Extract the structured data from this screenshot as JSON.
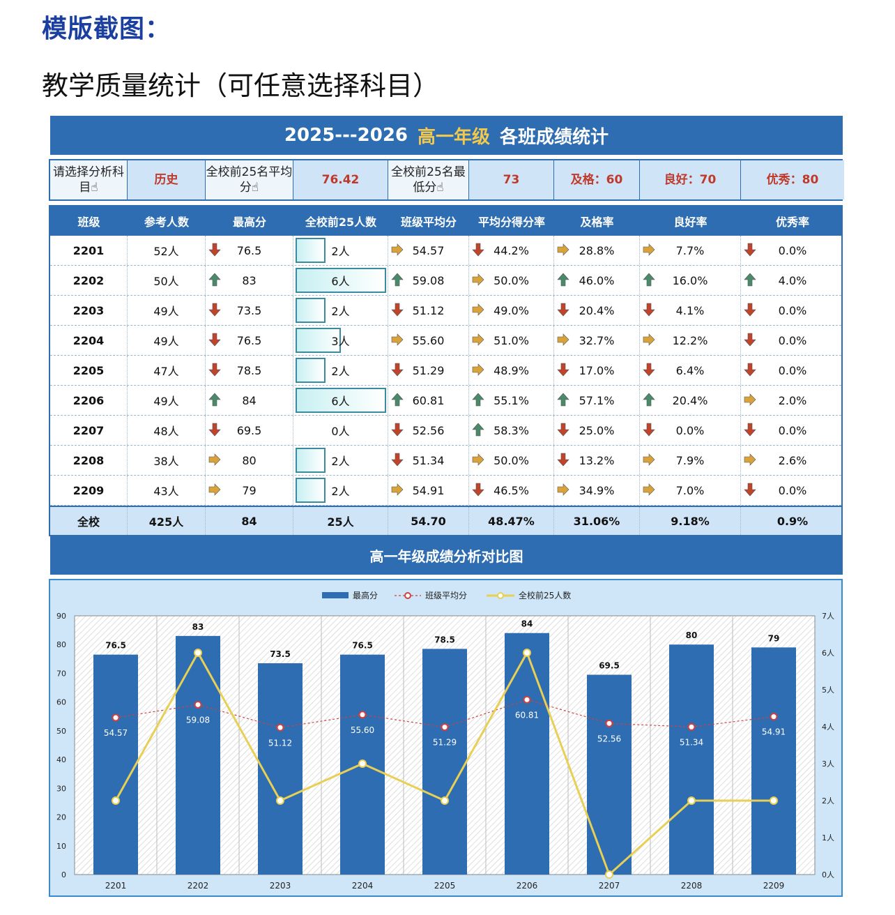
{
  "page": {
    "heading": "模版截图：",
    "subtitle": "教学质量统计（可任意选择科目）"
  },
  "banner": {
    "years": "2025---2026",
    "grade": "高一年级",
    "title": "各班成绩统计"
  },
  "selector": {
    "subject_label": "请选择分析科目☝",
    "subject_value": "历史",
    "avg_label": "全校前25名平均分☝",
    "avg_value": "76.42",
    "min_label": "全校前25名最低分☝",
    "min_value": "73",
    "pass": "及格：60",
    "good": "良好：70",
    "excellent": "优秀：80"
  },
  "table": {
    "headers": [
      "班级",
      "参考人数",
      "最高分",
      "全校前25人数",
      "班级平均分",
      "平均分得分率",
      "及格率",
      "良好率",
      "优秀率"
    ],
    "rows": [
      {
        "cls": "2201",
        "count": "52人",
        "max": "76.5",
        "max_t": "down",
        "top": "2人",
        "top_n": 2,
        "avg": "54.57",
        "avg_t": "right",
        "rate": "44.2%",
        "rate_t": "down",
        "pass": "28.8%",
        "pass_t": "right",
        "good": "7.7%",
        "good_t": "right",
        "exc": "0.0%",
        "exc_t": "down"
      },
      {
        "cls": "2202",
        "count": "50人",
        "max": "83",
        "max_t": "up",
        "top": "6人",
        "top_n": 6,
        "avg": "59.08",
        "avg_t": "up",
        "rate": "50.0%",
        "rate_t": "right",
        "pass": "46.0%",
        "pass_t": "up",
        "good": "16.0%",
        "good_t": "up",
        "exc": "4.0%",
        "exc_t": "up"
      },
      {
        "cls": "2203",
        "count": "49人",
        "max": "73.5",
        "max_t": "down",
        "top": "2人",
        "top_n": 2,
        "avg": "51.12",
        "avg_t": "down",
        "rate": "49.0%",
        "rate_t": "right",
        "pass": "20.4%",
        "pass_t": "down",
        "good": "4.1%",
        "good_t": "down",
        "exc": "0.0%",
        "exc_t": "down"
      },
      {
        "cls": "2204",
        "count": "49人",
        "max": "76.5",
        "max_t": "down",
        "top": "3人",
        "top_n": 3,
        "avg": "55.60",
        "avg_t": "right",
        "rate": "51.0%",
        "rate_t": "right",
        "pass": "32.7%",
        "pass_t": "right",
        "good": "12.2%",
        "good_t": "right",
        "exc": "0.0%",
        "exc_t": "down"
      },
      {
        "cls": "2205",
        "count": "47人",
        "max": "78.5",
        "max_t": "down",
        "top": "2人",
        "top_n": 2,
        "avg": "51.29",
        "avg_t": "down",
        "rate": "48.9%",
        "rate_t": "right",
        "pass": "17.0%",
        "pass_t": "down",
        "good": "6.4%",
        "good_t": "down",
        "exc": "0.0%",
        "exc_t": "down"
      },
      {
        "cls": "2206",
        "count": "49人",
        "max": "84",
        "max_t": "up",
        "top": "6人",
        "top_n": 6,
        "avg": "60.81",
        "avg_t": "up",
        "rate": "55.1%",
        "rate_t": "up",
        "pass": "57.1%",
        "pass_t": "up",
        "good": "20.4%",
        "good_t": "up",
        "exc": "2.0%",
        "exc_t": "right"
      },
      {
        "cls": "2207",
        "count": "48人",
        "max": "69.5",
        "max_t": "down",
        "top": "0人",
        "top_n": 0,
        "avg": "52.56",
        "avg_t": "down",
        "rate": "58.3%",
        "rate_t": "up",
        "pass": "25.0%",
        "pass_t": "down",
        "good": "0.0%",
        "good_t": "down",
        "exc": "0.0%",
        "exc_t": "down"
      },
      {
        "cls": "2208",
        "count": "38人",
        "max": "80",
        "max_t": "right",
        "top": "2人",
        "top_n": 2,
        "avg": "51.34",
        "avg_t": "down",
        "rate": "50.0%",
        "rate_t": "right",
        "pass": "13.2%",
        "pass_t": "down",
        "good": "7.9%",
        "good_t": "right",
        "exc": "2.6%",
        "exc_t": "right"
      },
      {
        "cls": "2209",
        "count": "43人",
        "max": "79",
        "max_t": "right",
        "top": "2人",
        "top_n": 2,
        "avg": "54.91",
        "avg_t": "right",
        "rate": "46.5%",
        "rate_t": "down",
        "pass": "34.9%",
        "pass_t": "right",
        "good": "7.0%",
        "good_t": "right",
        "exc": "0.0%",
        "exc_t": "down"
      }
    ],
    "total": {
      "label": "全校",
      "count": "425人",
      "max": "84",
      "top": "25人",
      "avg": "54.70",
      "rate": "48.47%",
      "pass": "31.06%",
      "good": "9.18%",
      "exc": "0.9%"
    }
  },
  "colors": {
    "up": "#4a8a6a",
    "down": "#c0432a",
    "right": "#d9a33a",
    "bar": "#2e6db1",
    "avg_line": "#d04040",
    "top_line": "#e8cf55"
  },
  "chart_title": "高一年级成绩分析对比图",
  "chart_data": {
    "type": "bar",
    "categories": [
      "2201",
      "2202",
      "2203",
      "2204",
      "2205",
      "2206",
      "2207",
      "2208",
      "2209"
    ],
    "series": [
      {
        "name": "最高分",
        "kind": "bar",
        "axis": "left",
        "values": [
          76.5,
          83,
          73.5,
          76.5,
          78.5,
          84,
          69.5,
          80,
          79
        ],
        "labels": [
          "76.5",
          "83",
          "73.5",
          "76.5",
          "78.5",
          "84",
          "69.5",
          "80",
          "79"
        ]
      },
      {
        "name": "班级平均分",
        "kind": "line-dotted",
        "axis": "left",
        "values": [
          54.57,
          59.08,
          51.12,
          55.6,
          51.29,
          60.81,
          52.56,
          51.34,
          54.91
        ],
        "labels": [
          "54.57",
          "59.08",
          "51.12",
          "55.60",
          "51.29",
          "60.81",
          "52.56",
          "51.34",
          "54.91"
        ]
      },
      {
        "name": "全校前25人数",
        "kind": "line",
        "axis": "right",
        "values": [
          2,
          6,
          2,
          3,
          2,
          6,
          0,
          2,
          2
        ]
      }
    ],
    "ylim": [
      0,
      90
    ],
    "yticks": [
      "0",
      "10",
      "20",
      "30",
      "40",
      "50",
      "60",
      "70",
      "80",
      "90"
    ],
    "y2lim": [
      0,
      7
    ],
    "y2ticks": [
      "0人",
      "1人",
      "2人",
      "3人",
      "4人",
      "5人",
      "6人",
      "7人"
    ],
    "legend": "top"
  }
}
